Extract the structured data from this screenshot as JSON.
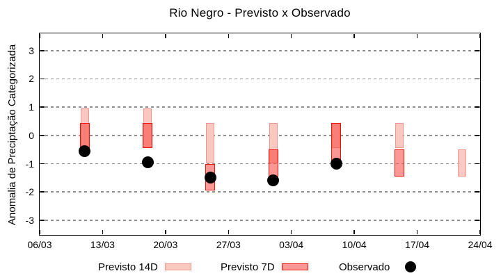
{
  "title": "Rio Negro - Previsto x Observado",
  "axes": {
    "y_label": "Anomalia de Preciptação Categorizada",
    "y_ticks": [
      3,
      2,
      1,
      0,
      -1,
      -2,
      -3
    ],
    "x_ticks": [
      "06/03",
      "13/03",
      "20/03",
      "27/03",
      "03/04",
      "10/04",
      "17/04",
      "24/04"
    ]
  },
  "legend": {
    "previsto14_label": "Previsto 14D",
    "previsto7_label": "Previsto 7D",
    "observado_label": "Observado"
  },
  "colors": {
    "previsto14_fill": "#f9c8c1",
    "previsto14_border": "#f2968e",
    "previsto7_fill": "rgba(247,68,58,0.55)",
    "previsto7_border": "#f2120d",
    "observado": "#000000",
    "grid": "#8f8f8f",
    "axis": "#000000"
  },
  "chart_data": {
    "type": "bar",
    "subtype": "range-bars-with-scatter",
    "title": "Rio Negro - Previsto x Observado",
    "xlabel": "",
    "ylabel": "Anomalia de Preciptação Categorizada",
    "categories": [
      "11/03",
      "18/03",
      "25/03",
      "01/04",
      "08/04",
      "15/04",
      "22/04"
    ],
    "x_days": [
      5,
      12,
      19,
      26,
      33,
      40,
      47
    ],
    "x_tick_days": [
      0,
      7,
      14,
      21,
      28,
      35,
      42,
      49
    ],
    "x_tick_labels": [
      "06/03",
      "13/03",
      "20/03",
      "27/03",
      "03/04",
      "10/04",
      "17/04",
      "24/04"
    ],
    "xlim_days": [
      0,
      49
    ],
    "ylim": [
      -3.52,
      3.61
    ],
    "y_ticks": [
      3,
      2,
      1,
      0,
      -1,
      -2,
      -3
    ],
    "grid": "horizontal-dashed",
    "legend_position": "bottom",
    "series": [
      {
        "name": "Previsto 14D",
        "kind": "range",
        "ranges": [
          [
            -0.45,
            0.95
          ],
          [
            -0.45,
            0.95
          ],
          [
            -1.0,
            0.45
          ],
          [
            -1.0,
            0.45
          ],
          [
            -0.45,
            0.45
          ],
          [
            -0.45,
            0.45
          ],
          [
            -1.45,
            -0.5
          ]
        ]
      },
      {
        "name": "Previsto 7D",
        "kind": "range",
        "ranges": [
          [
            -0.45,
            0.45
          ],
          [
            -0.45,
            0.45
          ],
          [
            -1.95,
            -1.0
          ],
          [
            -1.45,
            -0.5
          ],
          [
            -0.9,
            0.45
          ],
          [
            -1.45,
            -0.5
          ],
          null
        ]
      },
      {
        "name": "Observado",
        "kind": "scatter",
        "values": [
          -0.55,
          -0.95,
          -1.5,
          -1.6,
          -1.0,
          null,
          null
        ]
      }
    ]
  }
}
